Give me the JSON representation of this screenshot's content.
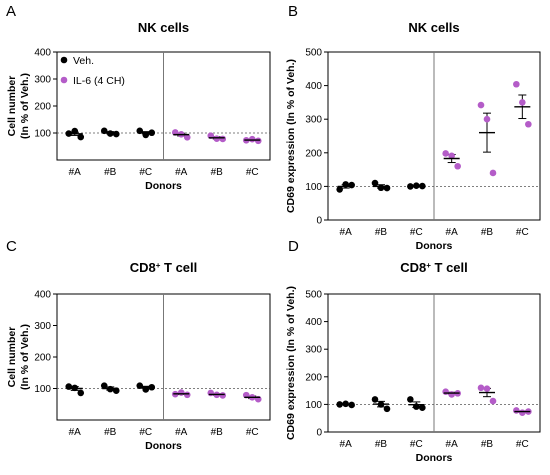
{
  "colors": {
    "veh": "#000000",
    "il6": "#b45cc8",
    "axis": "#000000",
    "ref": "#555555"
  },
  "chart_data": [
    {
      "panel": "A",
      "type": "scatter",
      "title": "NK cells",
      "title_sup": "",
      "title_tail": "",
      "xlabel": "Donors",
      "ylabel": [
        "Cell number",
        "(In % of Veh.)"
      ],
      "ylim": [
        0,
        400
      ],
      "yticks": [
        100,
        200,
        300,
        400
      ],
      "reference_line": 100,
      "legend": [
        {
          "name": "Veh.",
          "color": "#000000"
        },
        {
          "name": "IL-6 (4 CH)",
          "color": "#b45cc8"
        }
      ],
      "groups": [
        {
          "label": "#A",
          "series": "Veh.",
          "points": [
            98,
            107,
            85
          ],
          "mean": 97,
          "sem": 6
        },
        {
          "label": "#B",
          "series": "Veh.",
          "points": [
            108,
            98,
            96
          ],
          "mean": 101,
          "sem": 4
        },
        {
          "label": "#C",
          "series": "Veh.",
          "points": [
            108,
            93,
            101
          ],
          "mean": 101,
          "sem": 4
        },
        {
          "label": "#A",
          "series": "IL-6 (4 CH)",
          "points": [
            102,
            95,
            84
          ],
          "mean": 94,
          "sem": 5
        },
        {
          "label": "#B",
          "series": "IL-6 (4 CH)",
          "points": [
            90,
            79,
            78
          ],
          "mean": 82,
          "sem": 4
        },
        {
          "label": "#C",
          "series": "IL-6 (4 CH)",
          "points": [
            73,
            77,
            71
          ],
          "mean": 74,
          "sem": 2
        }
      ]
    },
    {
      "panel": "B",
      "type": "scatter",
      "title": "NK cells",
      "title_sup": "",
      "title_tail": "",
      "xlabel": "Donors",
      "ylabel": [
        "CD69 expression (In % of Veh.)"
      ],
      "ylim": [
        0,
        500
      ],
      "yticks": [
        0,
        100,
        200,
        300,
        400,
        500
      ],
      "reference_line": 100,
      "groups": [
        {
          "label": "#A",
          "series": "Veh.",
          "points": [
            91,
            106,
            104
          ],
          "mean": 100,
          "sem": 5
        },
        {
          "label": "#B",
          "series": "Veh.",
          "points": [
            110,
            96,
            95
          ],
          "mean": 100,
          "sem": 5
        },
        {
          "label": "#C",
          "series": "Veh.",
          "points": [
            100,
            102,
            101
          ],
          "mean": 101,
          "sem": 1
        },
        {
          "label": "#A",
          "series": "IL-6 (4 CH)",
          "points": [
            198,
            191,
            160
          ],
          "mean": 183,
          "sem": 12
        },
        {
          "label": "#B",
          "series": "IL-6 (4 CH)",
          "points": [
            342,
            300,
            140
          ],
          "mean": 260,
          "sem": 58
        },
        {
          "label": "#C",
          "series": "IL-6 (4 CH)",
          "points": [
            404,
            350,
            285
          ],
          "mean": 337,
          "sem": 35
        }
      ]
    },
    {
      "panel": "C",
      "type": "scatter",
      "title": "CD8",
      "title_sup": "+",
      "title_tail": " T cell",
      "xlabel": "Donors",
      "ylabel": [
        "Cell number",
        "(In % of Veh.)"
      ],
      "ylim": [
        0,
        400
      ],
      "yticks": [
        100,
        200,
        300,
        400
      ],
      "reference_line": 100,
      "groups": [
        {
          "label": "#A",
          "series": "Veh.",
          "points": [
            106,
            102,
            86
          ],
          "mean": 100,
          "sem": 6
        },
        {
          "label": "#B",
          "series": "Veh.",
          "points": [
            109,
            98,
            93
          ],
          "mean": 100,
          "sem": 5
        },
        {
          "label": "#C",
          "series": "Veh.",
          "points": [
            109,
            97,
            104
          ],
          "mean": 104,
          "sem": 3
        },
        {
          "label": "#A",
          "series": "IL-6 (4 CH)",
          "points": [
            82,
            87,
            80
          ],
          "mean": 83,
          "sem": 2
        },
        {
          "label": "#B",
          "series": "IL-6 (4 CH)",
          "points": [
            86,
            80,
            78
          ],
          "mean": 81,
          "sem": 2
        },
        {
          "label": "#C",
          "series": "IL-6 (4 CH)",
          "points": [
            79,
            72,
            66
          ],
          "mean": 72,
          "sem": 4
        }
      ]
    },
    {
      "panel": "D",
      "type": "scatter",
      "title": "CD8",
      "title_sup": "+",
      "title_tail": " T cell",
      "xlabel": "Donors",
      "ylabel": [
        "CD69 expression (In % of Veh.)"
      ],
      "ylim": [
        0,
        500
      ],
      "yticks": [
        0,
        100,
        200,
        300,
        400,
        500
      ],
      "reference_line": 100,
      "groups": [
        {
          "label": "#A",
          "series": "Veh.",
          "points": [
            100,
            102,
            98
          ],
          "mean": 100,
          "sem": 1
        },
        {
          "label": "#B",
          "series": "Veh.",
          "points": [
            118,
            100,
            84
          ],
          "mean": 101,
          "sem": 10
        },
        {
          "label": "#C",
          "series": "Veh.",
          "points": [
            118,
            92,
            88
          ],
          "mean": 99,
          "sem": 10
        },
        {
          "label": "#A",
          "series": "IL-6 (4 CH)",
          "points": [
            146,
            136,
            140
          ],
          "mean": 141,
          "sem": 3
        },
        {
          "label": "#B",
          "series": "IL-6 (4 CH)",
          "points": [
            160,
            157,
            112
          ],
          "mean": 143,
          "sem": 15
        },
        {
          "label": "#C",
          "series": "IL-6 (4 CH)",
          "points": [
            78,
            70,
            74
          ],
          "mean": 74,
          "sem": 2
        }
      ]
    }
  ]
}
